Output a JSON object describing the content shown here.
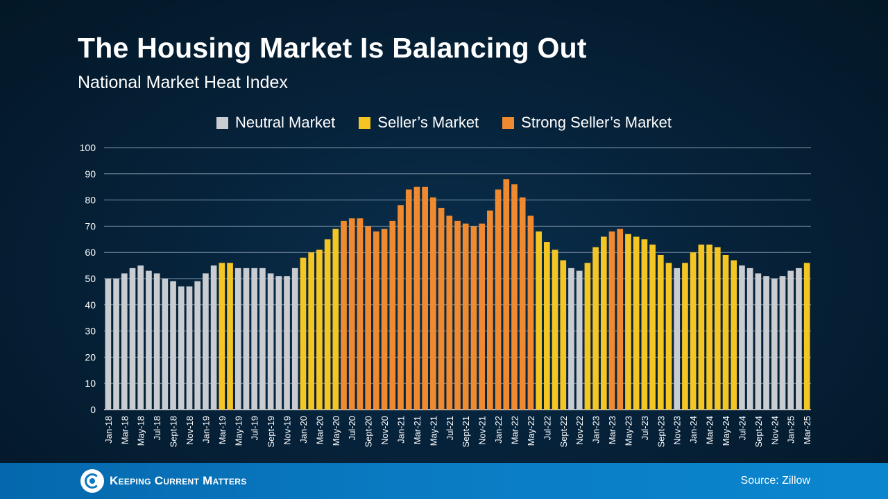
{
  "colors": {
    "neutral": "#c9ccd0",
    "seller": "#f5c523",
    "strong": "#f08a30",
    "grid": "#7f93a6",
    "axis": "#e6e6e6"
  },
  "footer": {
    "brand": "Keeping Current Matters",
    "source": "Source: Zillow"
  },
  "chart_data": {
    "type": "bar",
    "title": "The Housing Market Is Balancing Out",
    "subtitle": "National Market Heat Index",
    "legend_position": "top-center",
    "grid": true,
    "legend": [
      {
        "key": "neutral",
        "label": "Neutral Market"
      },
      {
        "key": "seller",
        "label": "Seller’s Market"
      },
      {
        "key": "strong",
        "label": "Strong Seller’s Market"
      }
    ],
    "ylim": [
      0,
      100
    ],
    "yticks": [
      0,
      10,
      20,
      30,
      40,
      50,
      60,
      70,
      80,
      90,
      100
    ],
    "xtick_labels": [
      "Jan-18",
      "Mar-18",
      "May-18",
      "Jul-18",
      "Sept-18",
      "Nov-18",
      "Jan-19",
      "Mar-19",
      "May-19",
      "Jul-19",
      "Sept-19",
      "Nov-19",
      "Jan-20",
      "Mar-20",
      "May-20",
      "Jul-20",
      "Sept-20",
      "Nov-20",
      "Jan-21",
      "Mar-21",
      "May-21",
      "Jul-21",
      "Sept-21",
      "Nov-21",
      "Jan-22",
      "Mar-22",
      "May-22",
      "Jul-22",
      "Sept-22",
      "Nov-22",
      "Jan-23",
      "Mar-23",
      "May-23",
      "Jul-23",
      "Sept-23",
      "Nov-23",
      "Jan-24",
      "Mar-24",
      "May-24",
      "Jul-24",
      "Sept-24",
      "Nov-24",
      "Jan-25",
      "Mar-25"
    ],
    "values": [
      50,
      50,
      52,
      54,
      55,
      53,
      52,
      50,
      49,
      47,
      47,
      49,
      52,
      55,
      56,
      56,
      54,
      54,
      54,
      54,
      52,
      51,
      51,
      54,
      58,
      60,
      61,
      65,
      69,
      72,
      73,
      73,
      70,
      68,
      69,
      72,
      78,
      84,
      85,
      85,
      81,
      77,
      74,
      72,
      71,
      70,
      71,
      76,
      84,
      88,
      86,
      81,
      74,
      68,
      64,
      61,
      57,
      54,
      53,
      56,
      62,
      66,
      68,
      69,
      67,
      66,
      65,
      63,
      59,
      56,
      54,
      56,
      60,
      63,
      63,
      62,
      59,
      57,
      55,
      54,
      52,
      51,
      50,
      51,
      53,
      54,
      56
    ],
    "categories_per_bar": [
      "neutral",
      "neutral",
      "neutral",
      "neutral",
      "neutral",
      "neutral",
      "neutral",
      "neutral",
      "neutral",
      "neutral",
      "neutral",
      "neutral",
      "neutral",
      "neutral",
      "seller",
      "seller",
      "neutral",
      "neutral",
      "neutral",
      "neutral",
      "neutral",
      "neutral",
      "neutral",
      "neutral",
      "seller",
      "seller",
      "seller",
      "seller",
      "seller",
      "strong",
      "strong",
      "strong",
      "strong",
      "strong",
      "strong",
      "strong",
      "strong",
      "strong",
      "strong",
      "strong",
      "strong",
      "strong",
      "strong",
      "strong",
      "strong",
      "strong",
      "strong",
      "strong",
      "strong",
      "strong",
      "strong",
      "strong",
      "strong",
      "seller",
      "seller",
      "seller",
      "seller",
      "neutral",
      "neutral",
      "seller",
      "seller",
      "seller",
      "strong",
      "strong",
      "seller",
      "seller",
      "seller",
      "seller",
      "seller",
      "seller",
      "neutral",
      "seller",
      "seller",
      "seller",
      "seller",
      "seller",
      "seller",
      "seller",
      "neutral",
      "neutral",
      "neutral",
      "neutral",
      "neutral",
      "neutral",
      "neutral",
      "neutral",
      "seller"
    ]
  }
}
